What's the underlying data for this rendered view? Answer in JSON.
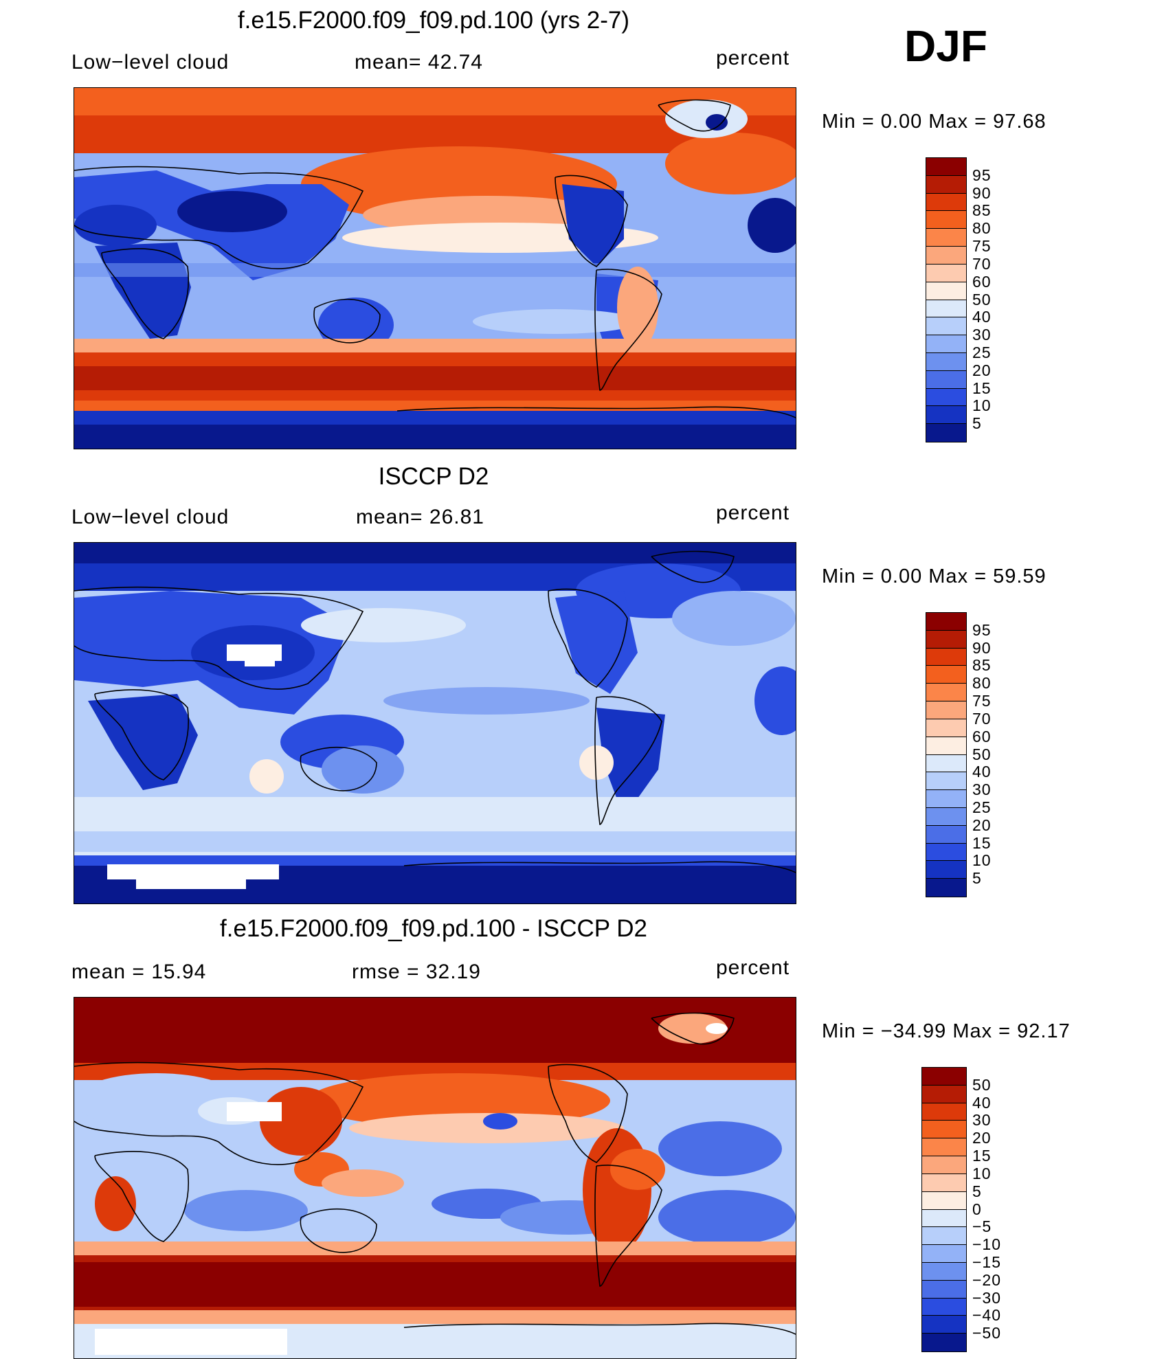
{
  "season": "DJF",
  "panels": [
    {
      "title": "f.e15.F2000.f09_f09.pd.100 (yrs 2-7)",
      "left_label": "Low−level cloud",
      "center_label": "mean=   42.74",
      "right_label": "percent",
      "minmax": "Min =     0.00  Max =    97.68",
      "map_name": "model-low-cloud-map",
      "colorbar": {
        "colors": [
          "#8b0000",
          "#b51c05",
          "#dd3a0a",
          "#f3601e",
          "#fb8549",
          "#fba77c",
          "#fdcbb0",
          "#fdeee2",
          "#dce9fa",
          "#b7cffa",
          "#93b2f7",
          "#6d91ef",
          "#4b6ee7",
          "#2b4de0",
          "#1533c2",
          "#08188d"
        ],
        "labels": [
          "95",
          "90",
          "85",
          "80",
          "75",
          "70",
          "60",
          "50",
          "40",
          "30",
          "25",
          "20",
          "15",
          "10",
          "5"
        ]
      }
    },
    {
      "title": "ISCCP D2",
      "left_label": "Low−level cloud",
      "center_label": "mean=   26.81",
      "right_label": "percent",
      "minmax": "Min =     0.00  Max =    59.59",
      "map_name": "isccp-low-cloud-map",
      "colorbar": {
        "colors": [
          "#8b0000",
          "#b51c05",
          "#dd3a0a",
          "#f3601e",
          "#fb8549",
          "#fba77c",
          "#fdcbb0",
          "#fdeee2",
          "#dce9fa",
          "#b7cffa",
          "#93b2f7",
          "#6d91ef",
          "#4b6ee7",
          "#2b4de0",
          "#1533c2",
          "#08188d"
        ],
        "labels": [
          "95",
          "90",
          "85",
          "80",
          "75",
          "70",
          "60",
          "50",
          "40",
          "30",
          "25",
          "20",
          "15",
          "10",
          "5"
        ]
      }
    },
    {
      "title": "f.e15.F2000.f09_f09.pd.100 - ISCCP D2",
      "left_label": "mean  =     15.94",
      "center_label": "rmse  =     32.19",
      "right_label": "percent",
      "minmax": "Min  =  −34.99  Max  =     92.17",
      "map_name": "difference-map",
      "colorbar": {
        "colors": [
          "#8b0000",
          "#b51c05",
          "#dd3a0a",
          "#f3601e",
          "#fb8549",
          "#fba77c",
          "#fdcbb0",
          "#fdeee2",
          "#dce9fa",
          "#b7cffa",
          "#93b2f7",
          "#6d91ef",
          "#4b6ee7",
          "#2b4de0",
          "#1533c2",
          "#08188d"
        ],
        "labels": [
          "50",
          "40",
          "30",
          "20",
          "15",
          "10",
          "5",
          "0",
          "−5",
          "−10",
          "−15",
          "−20",
          "−30",
          "−40",
          "−50"
        ]
      }
    }
  ]
}
